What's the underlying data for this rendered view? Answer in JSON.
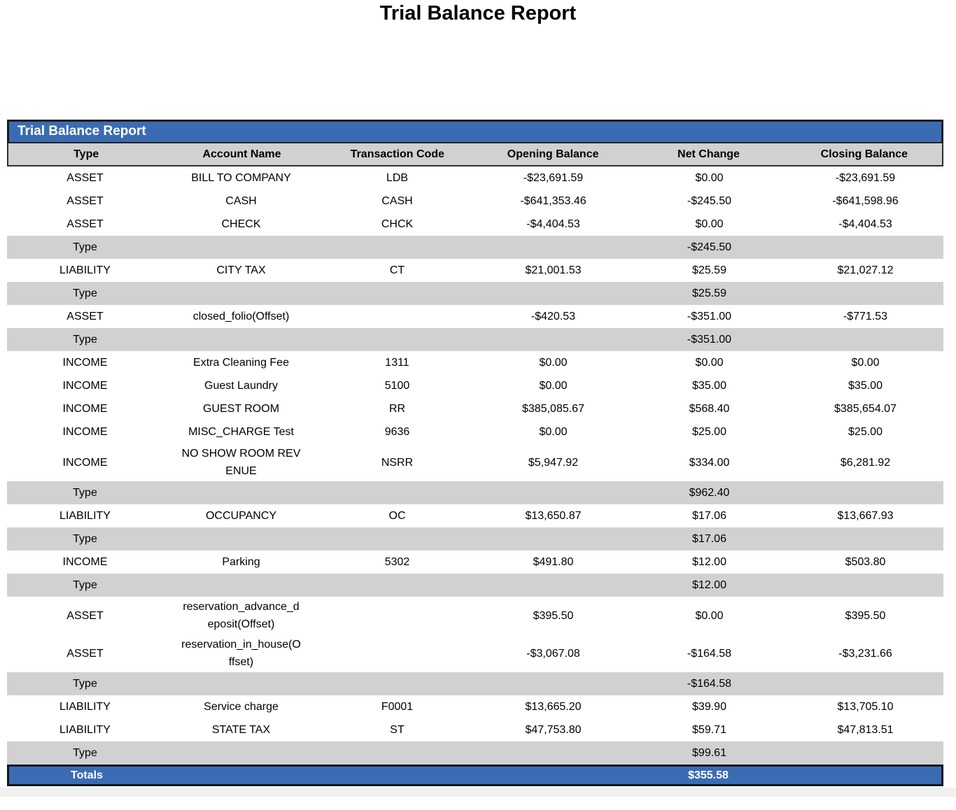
{
  "page_title": "Trial Balance Report",
  "report_table": {
    "title": "Trial Balance Report",
    "columns": [
      "Type",
      "Account Name",
      "Transaction Code",
      "Opening Balance",
      "Net Change",
      "Closing Balance"
    ],
    "rows": [
      {
        "kind": "data",
        "type": "ASSET",
        "account": "BILL TO COMPANY",
        "code": "LDB",
        "opening": "-$23,691.59",
        "net": "$0.00",
        "closing": "-$23,691.59"
      },
      {
        "kind": "data",
        "type": "ASSET",
        "account": "CASH",
        "code": "CASH",
        "opening": "-$641,353.46",
        "net": "-$245.50",
        "closing": "-$641,598.96"
      },
      {
        "kind": "data",
        "type": "ASSET",
        "account": "CHECK",
        "code": "CHCK",
        "opening": "-$4,404.53",
        "net": "$0.00",
        "closing": "-$4,404.53"
      },
      {
        "kind": "subtotal",
        "label": "Type",
        "net": "-$245.50"
      },
      {
        "kind": "data",
        "type": "LIABILITY",
        "account": "CITY TAX",
        "code": "CT",
        "opening": "$21,001.53",
        "net": "$25.59",
        "closing": "$21,027.12"
      },
      {
        "kind": "subtotal",
        "label": "Type",
        "net": "$25.59"
      },
      {
        "kind": "data",
        "type": "ASSET",
        "account": "closed_folio(Offset)",
        "code": "",
        "opening": "-$420.53",
        "net": "-$351.00",
        "closing": "-$771.53"
      },
      {
        "kind": "subtotal",
        "label": "Type",
        "net": "-$351.00"
      },
      {
        "kind": "data",
        "type": "INCOME",
        "account": "Extra Cleaning Fee",
        "code": "1311",
        "opening": "$0.00",
        "net": "$0.00",
        "closing": "$0.00"
      },
      {
        "kind": "data",
        "type": "INCOME",
        "account": "Guest Laundry",
        "code": "5100",
        "opening": "$0.00",
        "net": "$35.00",
        "closing": "$35.00"
      },
      {
        "kind": "data",
        "type": "INCOME",
        "account": "GUEST ROOM",
        "code": "RR",
        "opening": "$385,085.67",
        "net": "$568.40",
        "closing": "$385,654.07"
      },
      {
        "kind": "data",
        "type": "INCOME",
        "account": "MISC_CHARGE Test",
        "code": "9636",
        "opening": "$0.00",
        "net": "$25.00",
        "closing": "$25.00"
      },
      {
        "kind": "data",
        "type": "INCOME",
        "account": "NO SHOW ROOM REVENUE",
        "code": "NSRR",
        "opening": "$5,947.92",
        "net": "$334.00",
        "closing": "$6,281.92"
      },
      {
        "kind": "subtotal",
        "label": "Type",
        "net": "$962.40"
      },
      {
        "kind": "data",
        "type": "LIABILITY",
        "account": "OCCUPANCY",
        "code": "OC",
        "opening": "$13,650.87",
        "net": "$17.06",
        "closing": "$13,667.93"
      },
      {
        "kind": "subtotal",
        "label": "Type",
        "net": "$17.06"
      },
      {
        "kind": "data",
        "type": "INCOME",
        "account": "Parking",
        "code": "5302",
        "opening": "$491.80",
        "net": "$12.00",
        "closing": "$503.80"
      },
      {
        "kind": "subtotal",
        "label": "Type",
        "net": "$12.00"
      },
      {
        "kind": "data",
        "type": "ASSET",
        "account": "reservation_advance_deposit(Offset)",
        "code": "",
        "opening": "$395.50",
        "net": "$0.00",
        "closing": "$395.50"
      },
      {
        "kind": "data",
        "type": "ASSET",
        "account": "reservation_in_house(Offset)",
        "code": "",
        "opening": "-$3,067.08",
        "net": "-$164.58",
        "closing": "-$3,231.66"
      },
      {
        "kind": "subtotal",
        "label": "Type",
        "net": "-$164.58"
      },
      {
        "kind": "data",
        "type": "LIABILITY",
        "account": "Service charge",
        "code": "F0001",
        "opening": "$13,665.20",
        "net": "$39.90",
        "closing": "$13,705.10"
      },
      {
        "kind": "data",
        "type": "LIABILITY",
        "account": "STATE TAX",
        "code": "ST",
        "opening": "$47,753.80",
        "net": "$59.71",
        "closing": "$47,813.51"
      },
      {
        "kind": "subtotal",
        "label": "Type",
        "net": "$99.61"
      }
    ],
    "totals": {
      "label": "Totals",
      "net_change": "$355.58"
    }
  },
  "colors": {
    "title_bar_blue": "#3B6CB3",
    "totals_blue": "#3B6CB3",
    "subtotal_gray": "#D1D1D1",
    "border_dark": "#1C1C1C",
    "title_text": "#FFFFFF"
  }
}
